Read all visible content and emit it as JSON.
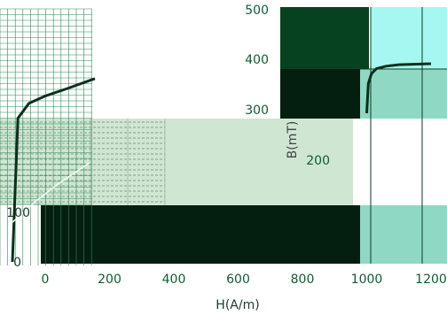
{
  "chart_data": {
    "type": "line",
    "xlabel": "H(A/m)",
    "ylabel": "B(mT)",
    "xlim": [
      0,
      1200
    ],
    "ylim": [
      0,
      500
    ],
    "x_ticks": [
      "0",
      "200",
      "400",
      "600",
      "800",
      "1000",
      "1200"
    ],
    "y_ticks_right": [
      "500",
      "400",
      "300",
      "200"
    ],
    "y_ticks_left": [
      "100",
      "0"
    ],
    "series": [
      {
        "x": [
          0,
          10,
          30,
          60,
          100,
          150
        ],
        "y": [
          0,
          290,
          320,
          335,
          350,
          370
        ]
      },
      {
        "x": [
          0,
          20,
          40,
          80,
          140
        ],
        "y": [
          80,
          100,
          120,
          155,
          200
        ]
      },
      {
        "x": [
          1000,
          1005,
          1015,
          1030,
          1060,
          1100,
          1200
        ],
        "y": [
          300,
          360,
          380,
          390,
          395,
          398,
          400
        ]
      }
    ],
    "grid": true
  },
  "colors": {
    "dark_block": "#0a3d1e",
    "mid_block": "#06421f",
    "light_panel": "#cfe6d3",
    "teal_panel": "#8fd8c4",
    "cyan_panel": "#a5f7f2",
    "label_green": "#0f5c33",
    "grid_line": "#2e8a57",
    "curve": "#0c2f1b"
  }
}
